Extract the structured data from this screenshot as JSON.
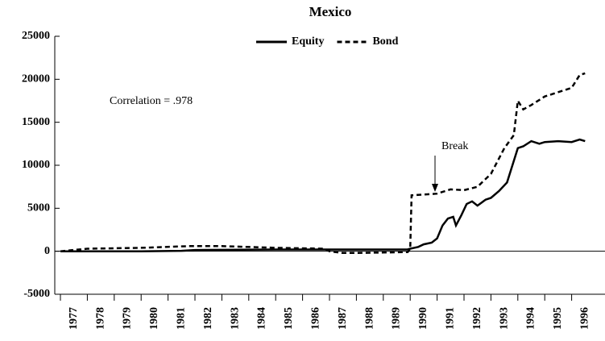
{
  "chart_data": {
    "type": "line",
    "title": "Mexico",
    "annotations": [
      "Correlation = .978",
      "Break"
    ],
    "x_categories_label_note": null,
    "xlim": [
      1977,
      1997
    ],
    "xticks": [
      1977,
      1978,
      1979,
      1980,
      1981,
      1982,
      1983,
      1984,
      1985,
      1986,
      1987,
      1988,
      1989,
      1990,
      1991,
      1992,
      1993,
      1994,
      1995,
      1996
    ],
    "ylim": [
      -5000,
      25000
    ],
    "yticks": [
      -5000,
      0,
      5000,
      10000,
      15000,
      20000,
      25000
    ],
    "legend": "top",
    "series": [
      {
        "name": "Equity",
        "color": "#000000",
        "dash": "solid",
        "x": [
          1977,
          1980,
          1981.5,
          1982,
          1985,
          1989.9,
          1990.0,
          1990.3,
          1990.5,
          1990.8,
          1991.0,
          1991.2,
          1991.4,
          1991.6,
          1991.7,
          1991.9,
          1992.1,
          1992.3,
          1992.5,
          1992.8,
          1993.0,
          1993.3,
          1993.6,
          1993.8,
          1994.0,
          1994.2,
          1994.5,
          1994.8,
          1995.0,
          1995.5,
          1996.0,
          1996.3,
          1996.5
        ],
        "values": [
          0,
          0,
          50,
          150,
          200,
          200,
          300,
          500,
          800,
          1000,
          1500,
          3000,
          3800,
          4000,
          3000,
          4200,
          5500,
          5800,
          5300,
          6000,
          6200,
          7000,
          8000,
          10000,
          12000,
          12200,
          12800,
          12500,
          12700,
          12800,
          12700,
          13000,
          12800
        ]
      },
      {
        "name": "Bond",
        "color": "#000000",
        "dash": "dashed",
        "x": [
          1977,
          1978,
          1980,
          1981.8,
          1983,
          1985,
          1986.8,
          1987,
          1987.5,
          1988,
          1989.9,
          1990.0,
          1990.05,
          1990.5,
          1991,
          1991.5,
          1992,
          1992.5,
          1993,
          1993.5,
          1993.85,
          1994.0,
          1994.2,
          1994.5,
          1995,
          1995.5,
          1996,
          1996.3,
          1996.5
        ],
        "values": [
          0,
          300,
          400,
          600,
          600,
          400,
          300,
          0,
          -200,
          -200,
          -100,
          200,
          6500,
          6600,
          6700,
          7200,
          7100,
          7500,
          9000,
          12000,
          13500,
          17500,
          16500,
          17000,
          18000,
          18500,
          19000,
          20500,
          20700
        ]
      }
    ]
  }
}
